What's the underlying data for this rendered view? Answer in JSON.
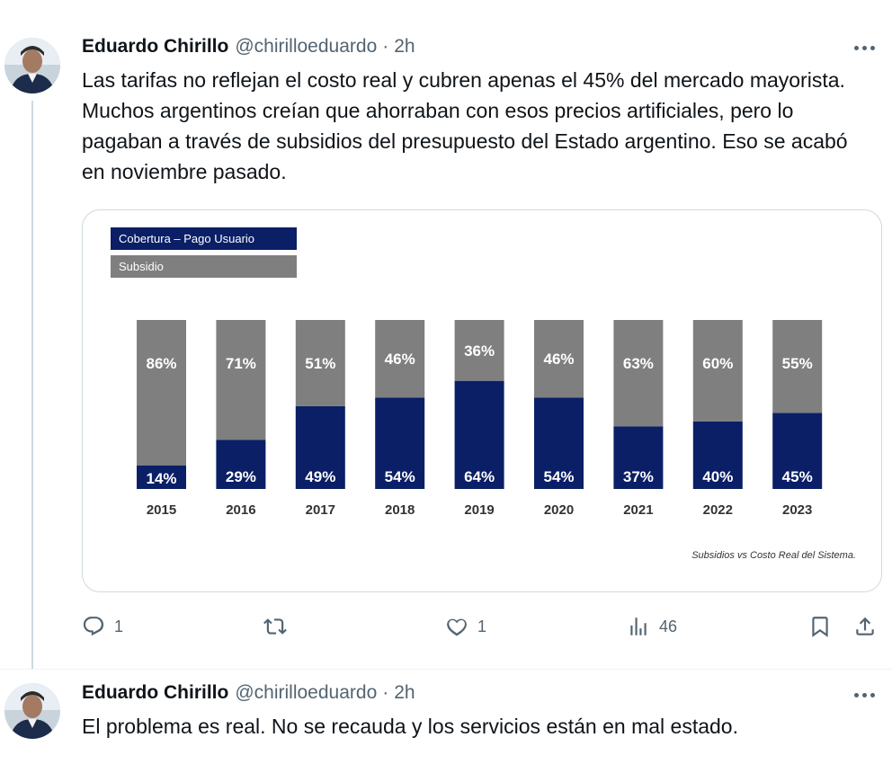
{
  "tweets": [
    {
      "author": "Eduardo Chirillo",
      "handle": "@chirilloeduardo",
      "separator": "·",
      "time": "2h",
      "text": "Las tarifas no reflejan el costo real y cubren apenas el 45% del mercado mayorista. Muchos argentinos creían que ahorraban con esos precios artificiales, pero lo pagaban a través de subsidios del presupuesto del Estado argentino. Eso se acabó en noviembre pasado.",
      "metrics": {
        "replies": "1",
        "retweets": "",
        "likes": "1",
        "views": "46"
      }
    },
    {
      "author": "Eduardo Chirillo",
      "handle": "@chirilloeduardo",
      "separator": "·",
      "time": "2h",
      "text": "El problema es real. No se recauda y los servicios están en mal estado."
    }
  ],
  "icons": {
    "reply": "reply-icon",
    "retweet": "retweet-icon",
    "like": "heart-icon",
    "views": "analytics-icon",
    "bookmark": "bookmark-icon",
    "share": "share-icon",
    "more": "more-icon"
  },
  "chart_data": {
    "type": "bar",
    "stacked": true,
    "categories": [
      "2015",
      "2016",
      "2017",
      "2018",
      "2019",
      "2020",
      "2021",
      "2022",
      "2023"
    ],
    "series": [
      {
        "name": "Cobertura – Pago Usuario",
        "color": "#0a1f66",
        "values": [
          14,
          29,
          49,
          54,
          64,
          54,
          37,
          40,
          45
        ]
      },
      {
        "name": "Subsidio",
        "color": "#7f7f7f",
        "values": [
          86,
          71,
          51,
          46,
          36,
          46,
          63,
          60,
          55
        ]
      }
    ],
    "value_suffix": "%",
    "ylim": [
      0,
      100
    ],
    "legend_position": "top-left",
    "caption": "Subsidios vs Costo Real del Sistema."
  }
}
